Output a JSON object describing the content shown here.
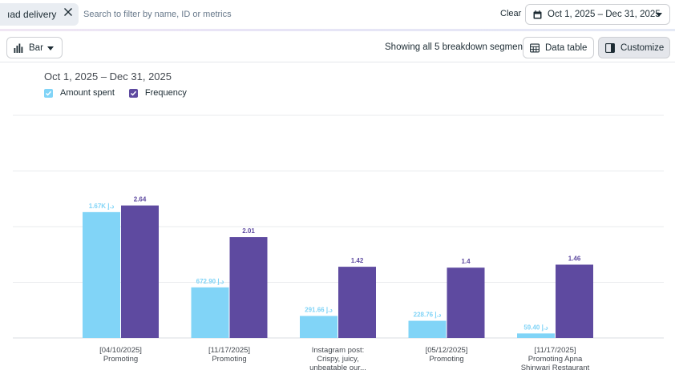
{
  "filter": {
    "chip_label": "ıad delivery",
    "search_placeholder": "Search to filter by name, ID or metrics",
    "clear_label": "Clear",
    "date_range": "Oct 1, 2025 – Dec 31, 2025"
  },
  "toolbar": {
    "chart_type_label": "Bar",
    "showing_text": "Showing all 5 breakdown segments",
    "data_table_label": "Data table",
    "customize_label": "Customize"
  },
  "icons": {
    "chip_close": "close-icon",
    "calendar": "calendar-icon",
    "chart_type": "bar-chart-icon",
    "data_table": "table-icon",
    "customize": "panel-icon",
    "legend_check": "check-icon"
  },
  "colors": {
    "amount_spent": "#81d4f7",
    "frequency": "#5e4aa0",
    "grid": "#e9ebee",
    "category_text": "#444950"
  },
  "chart_data": {
    "type": "bar",
    "title": "Oct 1, 2025 – Dec 31, 2025",
    "categories": [
      [
        "[04/10/2025]",
        "Promoting"
      ],
      [
        "[11/17/2025]",
        "Promoting"
      ],
      [
        "Instagram post:",
        "Crispy, juicy,",
        "unbeatable our..."
      ],
      [
        "[05/12/2025]",
        "Promoting"
      ],
      [
        "[11/17/2025]",
        "Promoting Apna",
        "Shinwari Restaurant"
      ]
    ],
    "series": [
      {
        "name": "Amount spent",
        "values": [
          1670,
          672.9,
          291.66,
          228.76,
          59.4
        ],
        "labels": [
          "1.67K د.إ",
          "672.90 د.إ",
          "291.66 د.إ",
          "228.76 د.إ",
          "59.40 د.إ"
        ],
        "relative_height": [
          0.836,
          0.336,
          0.146,
          0.114,
          0.03
        ]
      },
      {
        "name": "Frequency",
        "values": [
          2.64,
          2.01,
          1.42,
          1.4,
          1.46
        ],
        "labels": [
          "2.64",
          "2.01",
          "1.42",
          "1.4",
          "1.46"
        ],
        "relative_height": [
          0.88,
          0.67,
          0.473,
          0.467,
          0.487
        ]
      }
    ],
    "xlabel": "",
    "ylabel": "",
    "grid": true,
    "legend_position": "top-left",
    "y_axis_labels": false
  }
}
